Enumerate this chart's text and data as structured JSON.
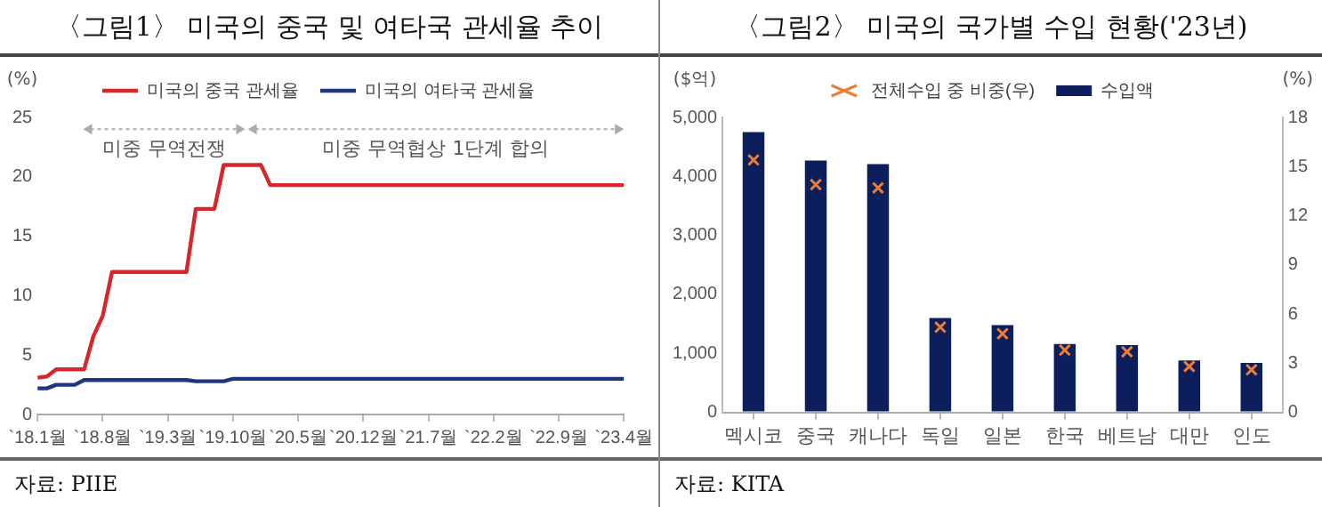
{
  "chart_data": [
    {
      "type": "line",
      "title": "〈그림1〉 미국의 중국 및 여타국 관세율 추이",
      "ylabel": "(%)",
      "categories": [
        "`18.1월",
        null,
        null,
        null,
        null,
        null,
        null,
        "`18.8월",
        null,
        null,
        null,
        null,
        null,
        null,
        "`19.3월",
        null,
        null,
        null,
        null,
        null,
        null,
        "`19.10월",
        null,
        null,
        null,
        null,
        null,
        null,
        "`20.5월",
        null,
        null,
        null,
        null,
        null,
        null,
        "`20.12월",
        null,
        null,
        null,
        null,
        null,
        null,
        "`21.7월",
        null,
        null,
        null,
        null,
        null,
        null,
        "`22.2월",
        null,
        null,
        null,
        null,
        null,
        null,
        "`22.9월",
        null,
        null,
        null,
        null,
        null,
        null,
        "`23.4월"
      ],
      "series": [
        {
          "name": "미국의 중국 관세율",
          "color": "#d9262b",
          "values": [
            3.1,
            3.2,
            3.8,
            3.8,
            3.8,
            3.8,
            6.6,
            8.3,
            12,
            12,
            12,
            12,
            12,
            12,
            12,
            12,
            12,
            17.3,
            17.3,
            17.3,
            21,
            21,
            21,
            21,
            21,
            19.3,
            19.3,
            19.3,
            19.3,
            19.3,
            19.3,
            19.3,
            19.3,
            19.3,
            19.3,
            19.3,
            19.3,
            19.3,
            19.3,
            19.3,
            19.3,
            19.3,
            19.3,
            19.3,
            19.3,
            19.3,
            19.3,
            19.3,
            19.3,
            19.3,
            19.3,
            19.3,
            19.3,
            19.3,
            19.3,
            19.3,
            19.3,
            19.3,
            19.3,
            19.3,
            19.3,
            19.3,
            19.3,
            19.3
          ]
        },
        {
          "name": "미국의 여타국 관세율",
          "color": "#1f3580",
          "values": [
            2.2,
            2.2,
            2.5,
            2.5,
            2.5,
            2.9,
            2.9,
            2.9,
            2.9,
            2.9,
            2.9,
            2.9,
            2.9,
            2.9,
            2.9,
            2.9,
            2.9,
            2.8,
            2.8,
            2.8,
            2.8,
            3,
            3,
            3,
            3,
            3,
            3,
            3,
            3,
            3,
            3,
            3,
            3,
            3,
            3,
            3,
            3,
            3,
            3,
            3,
            3,
            3,
            3,
            3,
            3,
            3,
            3,
            3,
            3,
            3,
            3,
            3,
            3,
            3,
            3,
            3,
            3,
            3,
            3,
            3,
            3,
            3,
            3,
            3
          ]
        }
      ],
      "ylim": [
        0,
        25
      ],
      "yticks": [
        0,
        5,
        10,
        15,
        20,
        25
      ],
      "grid": false,
      "legend": "top",
      "annotations": [
        "미중 무역전쟁",
        "미중 무역협상 1단계 합의",
        "자료: PIIE"
      ]
    },
    {
      "type": "bar",
      "title": "〈그림2〉 미국의 국가별 수입 현황('23년)",
      "ylabel": "($억)",
      "y2label": "(%)",
      "categories": [
        "멕시코",
        "중국",
        "캐나다",
        "독일",
        "일본",
        "한국",
        "베트남",
        "대만",
        "인도"
      ],
      "series": [
        {
          "name": "수입액",
          "type": "bar",
          "color": "#0c1f5c",
          "values": [
            4750,
            4270,
            4210,
            1600,
            1480,
            1160,
            1140,
            880,
            840
          ]
        },
        {
          "name": "전체수입 중 비중(우)",
          "type": "scatter",
          "axis": "y2",
          "color": "#ed7d31",
          "values": [
            15.4,
            13.9,
            13.7,
            5.2,
            4.8,
            3.8,
            3.7,
            2.8,
            2.6
          ]
        }
      ],
      "ylim": [
        0,
        5000
      ],
      "yticks": [
        0,
        {
          "value": 1000,
          "label": "1,000"
        },
        {
          "value": 2000,
          "label": "2,000"
        },
        {
          "value": 3000,
          "label": "3,000"
        },
        {
          "value": 4000,
          "label": "4,000"
        },
        {
          "value": 5000,
          "label": "5,000"
        }
      ],
      "y2lim": [
        0,
        18
      ],
      "y2ticks": [
        0,
        3,
        6,
        9,
        12,
        15,
        18
      ],
      "grid": false,
      "legend": "top",
      "marker": "cross",
      "annotations": [
        "자료: KITA"
      ]
    }
  ]
}
